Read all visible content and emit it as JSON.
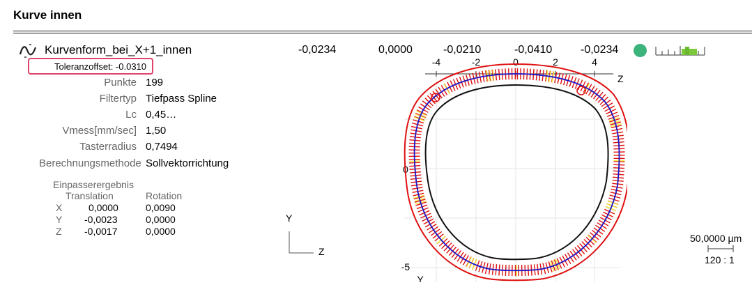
{
  "section": {
    "title": "Kurve innen"
  },
  "feature": {
    "name": "Kurvenform_bei_X+1_innen",
    "icon": "curve-form-icon",
    "tolerance_offset": "Toleranzoffset: -0.0310",
    "values": [
      "-0,0234",
      "0,0000",
      "-0,0210",
      "-0,0410",
      "-0,0234"
    ],
    "status_color": "#3cb37a"
  },
  "params": [
    {
      "label": "Punkte",
      "value": "199"
    },
    {
      "label": "Filtertyp",
      "value": "Tiefpass  Spline"
    },
    {
      "label": "Lc",
      "value": "0,45…"
    },
    {
      "label": "Vmess[mm/sec]",
      "value": "1,50"
    },
    {
      "label": "Tasterradius",
      "value": "0,7494"
    },
    {
      "label": "Berechnungsmethode",
      "value": "Sollvektorrichtung"
    }
  ],
  "fit": {
    "title": "Einpasserergebnis",
    "col_translation": "Translation",
    "col_rotation": "Rotation",
    "rows": [
      {
        "axis": "X",
        "translation": "0,0000",
        "rotation": "0,0090"
      },
      {
        "axis": "Y",
        "translation": "-0,0023",
        "rotation": "0,0000"
      },
      {
        "axis": "Z",
        "translation": "-0,0017",
        "rotation": "0,0000"
      }
    ]
  },
  "axes": {
    "y": "Y",
    "z": "Z"
  },
  "plot": {
    "top_ticks": [
      "-4",
      "-2",
      "0",
      "2",
      "4"
    ],
    "top_axis": "Z",
    "left_ticks": [
      "0",
      "-5"
    ],
    "left_axis": "Y",
    "colors": {
      "tolerance": "#e01010",
      "nominal": "#111111",
      "actual": "#1a1acc",
      "deviation_out": "#e01010",
      "deviation_in": "#f0ec40"
    }
  },
  "scale": {
    "length": "50,0000 µm",
    "ratio": "120 : 1"
  }
}
